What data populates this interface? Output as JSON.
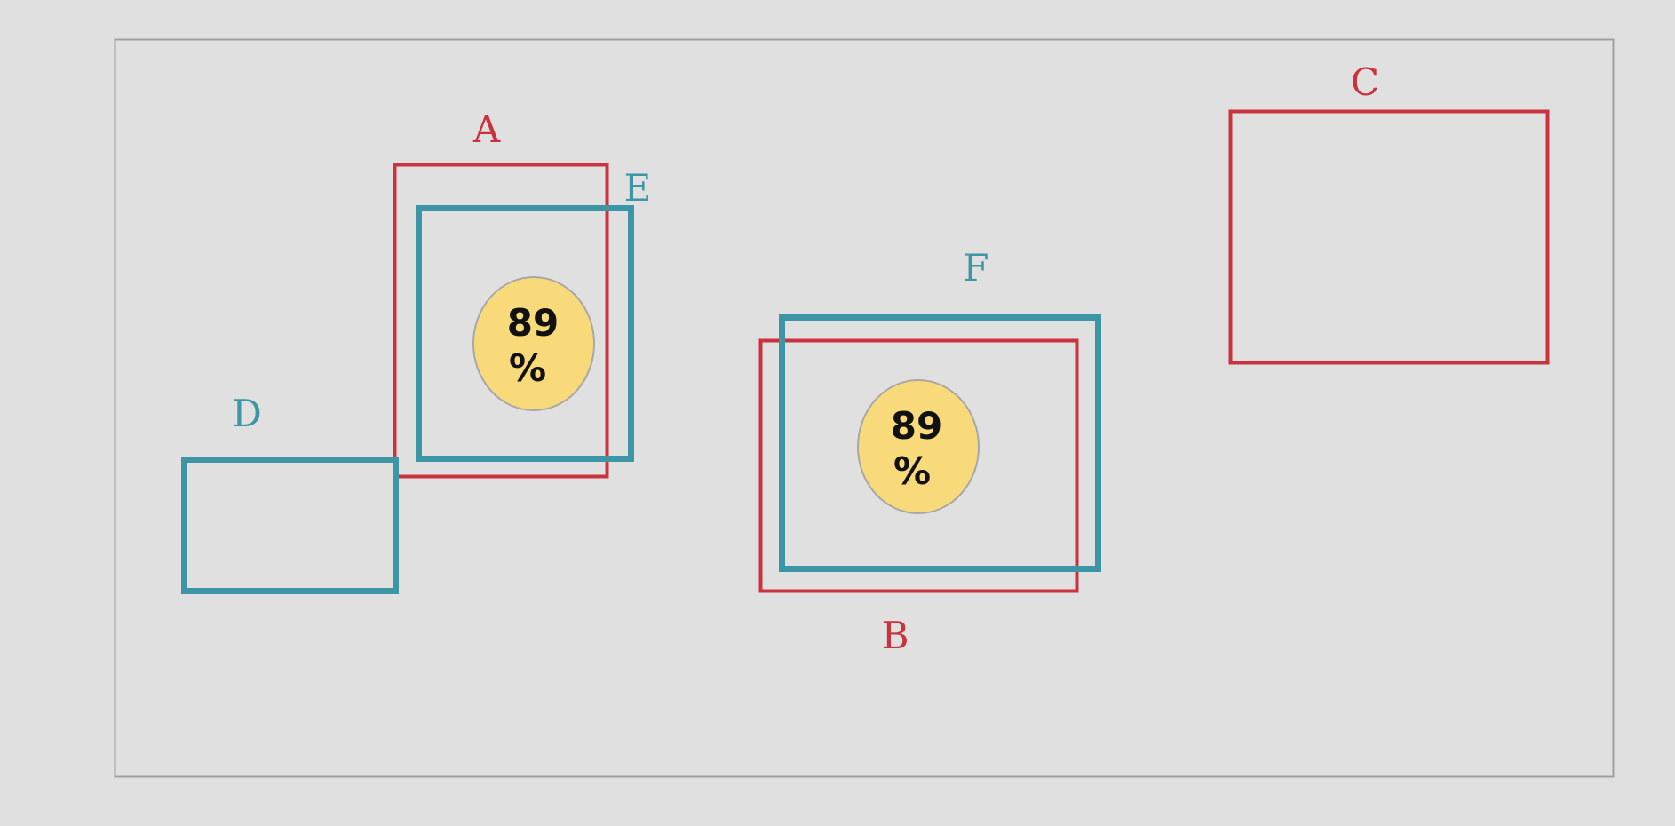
{
  "colors": {
    "background": "#e0e0e0",
    "frame": "#a0a0a0",
    "red": "#c9323e",
    "teal": "#3c96a5",
    "badge_fill": "#f9da7a",
    "badge_stroke": "#a8a8a8"
  },
  "boxes": {
    "a": {
      "label": "A",
      "color": "red"
    },
    "b": {
      "label": "B",
      "color": "red"
    },
    "c": {
      "label": "C",
      "color": "red"
    },
    "d": {
      "label": "D",
      "color": "teal"
    },
    "e": {
      "label": "E",
      "color": "teal"
    },
    "f": {
      "label": "F",
      "color": "teal"
    }
  },
  "badges": {
    "left": {
      "value": "89",
      "unit": "%"
    },
    "right": {
      "value": "89",
      "unit": "%"
    }
  }
}
